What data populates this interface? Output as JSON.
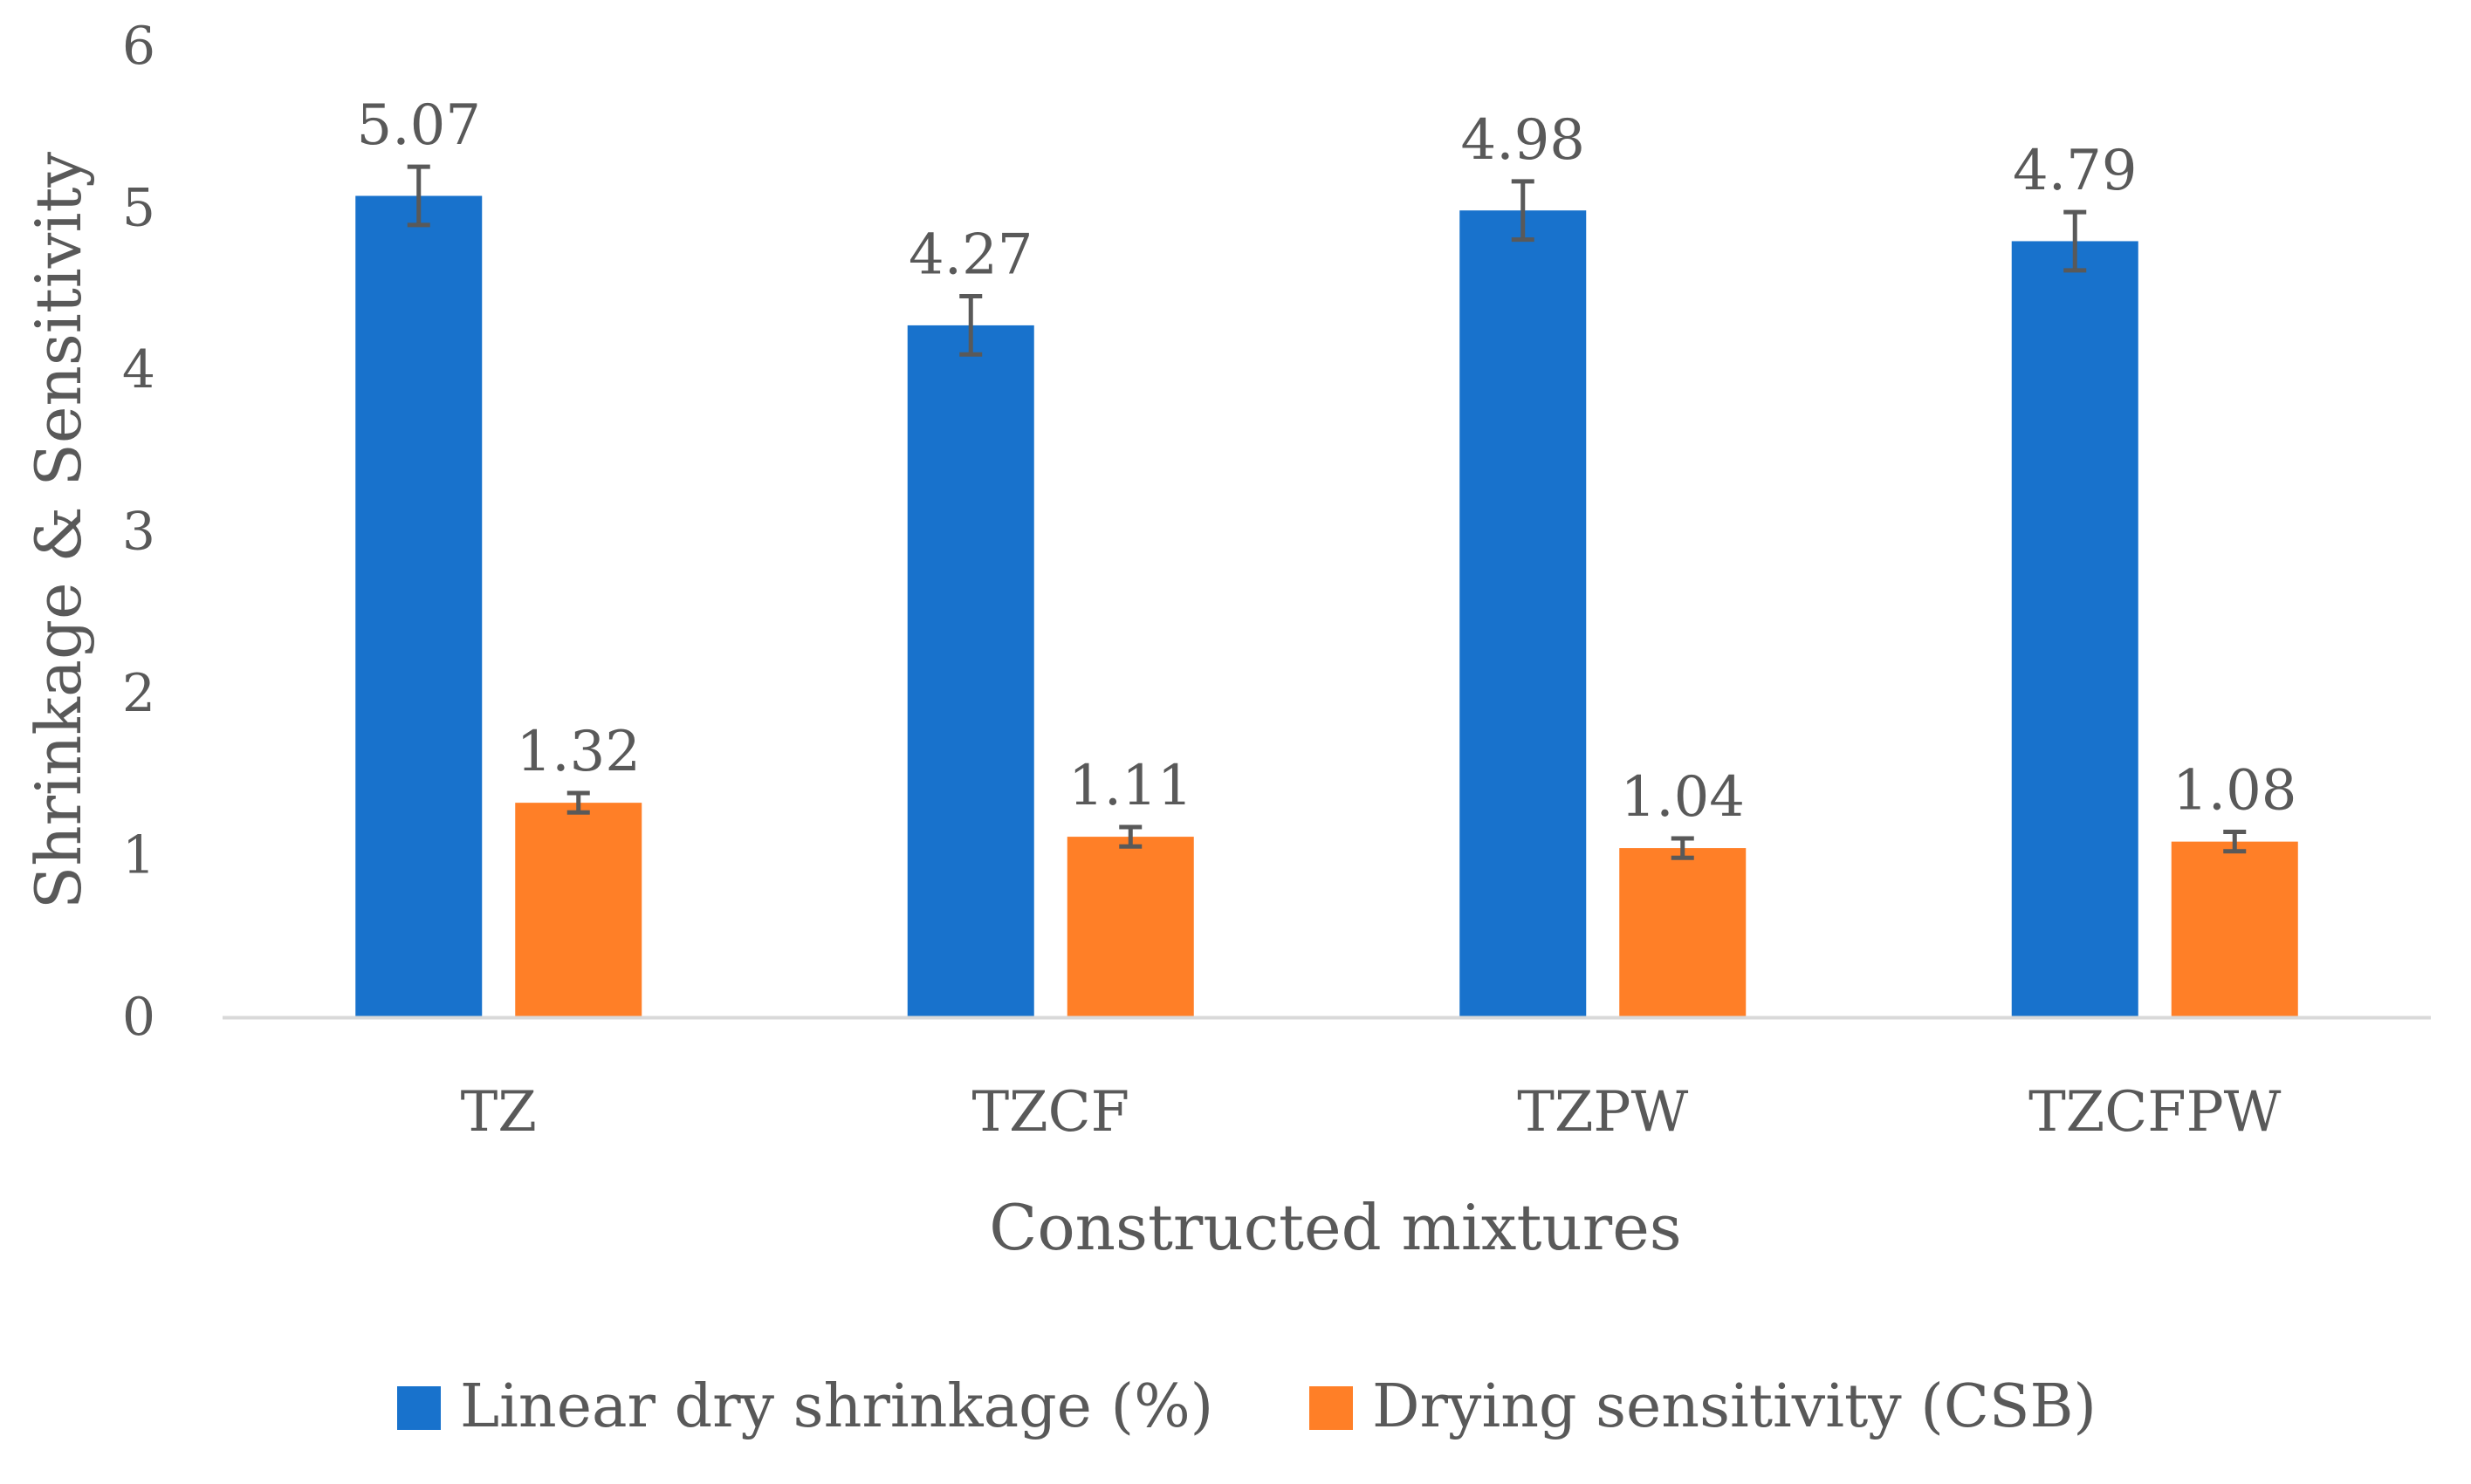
{
  "chart_data": {
    "type": "bar",
    "title": "",
    "xlabel": "Constructed mixtures",
    "ylabel": "Shrinkage & Sensitivity",
    "ylim": [
      0,
      6
    ],
    "yticks": [
      "0",
      "1",
      "2",
      "3",
      "4",
      "5",
      "6"
    ],
    "categories": [
      "TZ",
      "TZCF",
      "TZPW",
      "TZCFPW"
    ],
    "grid": false,
    "legend_position": "bottom",
    "series": [
      {
        "name": "Linear dry shrinkage (%)",
        "color": "#1872CC",
        "values": [
          5.07,
          4.27,
          4.98,
          4.79
        ],
        "labels": [
          "5.07",
          "4.27",
          "4.98",
          "4.79"
        ],
        "error": [
          0.18,
          0.18,
          0.18,
          0.18
        ]
      },
      {
        "name": "Drying sensitivity (CSB)",
        "color": "#FF7F27",
        "values": [
          1.32,
          1.11,
          1.04,
          1.08
        ],
        "labels": [
          "1.32",
          "1.11",
          "1.04",
          "1.08"
        ],
        "error": [
          0.06,
          0.06,
          0.06,
          0.06
        ]
      }
    ],
    "axis_color": "#D9D9D9",
    "error_bar_color": "#595959"
  }
}
